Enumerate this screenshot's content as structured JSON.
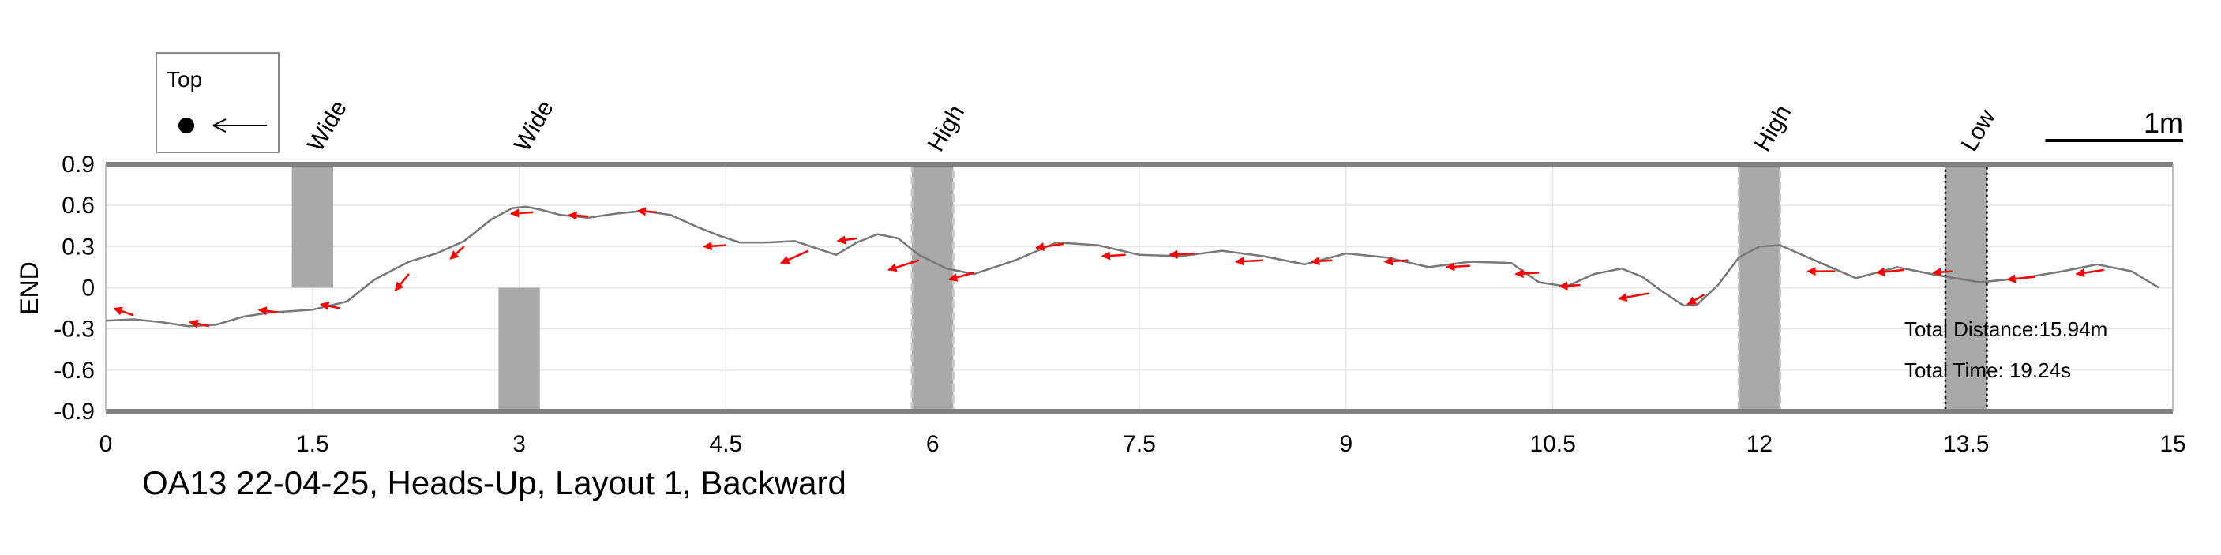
{
  "chart_data": {
    "type": "line",
    "title": "OA13 22-04-25, Heads-Up, Layout 1, Backward",
    "xlabel": "",
    "ylabel": "END",
    "xlim": [
      0,
      15
    ],
    "ylim": [
      -0.9,
      0.9
    ],
    "xticks": [
      "0",
      "1.5",
      "3",
      "4.5",
      "6",
      "7.5",
      "9",
      "10.5",
      "12",
      "13.5",
      "15"
    ],
    "yticks": [
      "0.9",
      "0.6",
      "0.3",
      "0",
      "-0.3",
      "-0.6",
      "-0.9"
    ],
    "grid": true,
    "colors": {
      "path": "#777777",
      "arrow": "#ff0000",
      "obstacle": "#a9a9a9",
      "axis": "#808080"
    },
    "legend": {
      "title": "Top",
      "position": "top-left",
      "marker": "dot-with-left-arrow"
    },
    "scale_bar": {
      "label": "1m",
      "length": 1.0
    },
    "annotations": {
      "total_distance": "Total Distance:15.94m",
      "total_time": "Total Time: 19.24s"
    },
    "obstacles": [
      {
        "label": "Wide",
        "x": [
          1.35,
          1.65
        ],
        "y": [
          0.0,
          0.9
        ],
        "style": "solid"
      },
      {
        "label": "Wide",
        "x": [
          2.85,
          3.15
        ],
        "y": [
          -0.9,
          0.0
        ],
        "style": "solid"
      },
      {
        "label": "High",
        "x": [
          5.85,
          6.15
        ],
        "y": [
          -0.9,
          0.9
        ],
        "style": "dashed"
      },
      {
        "label": "High",
        "x": [
          11.85,
          12.15
        ],
        "y": [
          -0.9,
          0.9
        ],
        "style": "dashed"
      },
      {
        "label": "Low",
        "x": [
          13.35,
          13.65
        ],
        "y": [
          -0.9,
          0.9
        ],
        "style": "dotted"
      }
    ],
    "path": {
      "x": [
        0.0,
        0.2,
        0.4,
        0.6,
        0.8,
        1.0,
        1.2,
        1.5,
        1.75,
        1.95,
        2.2,
        2.4,
        2.6,
        2.8,
        2.95,
        3.05,
        3.15,
        3.3,
        3.5,
        3.7,
        3.9,
        4.1,
        4.3,
        4.45,
        4.6,
        4.8,
        5.0,
        5.15,
        5.3,
        5.45,
        5.6,
        5.75,
        5.9,
        6.1,
        6.3,
        6.6,
        6.9,
        7.2,
        7.5,
        7.8,
        8.1,
        8.4,
        8.7,
        9.0,
        9.3,
        9.6,
        9.9,
        10.2,
        10.4,
        10.6,
        10.8,
        11.0,
        11.15,
        11.3,
        11.45,
        11.55,
        11.7,
        11.85,
        12.0,
        12.15,
        12.4,
        12.7,
        13.0,
        13.3,
        13.6,
        13.9,
        14.2,
        14.45,
        14.7,
        14.9
      ],
      "y": [
        -0.24,
        -0.23,
        -0.25,
        -0.28,
        -0.27,
        -0.21,
        -0.18,
        -0.16,
        -0.1,
        0.06,
        0.19,
        0.25,
        0.34,
        0.5,
        0.58,
        0.59,
        0.57,
        0.53,
        0.51,
        0.54,
        0.56,
        0.53,
        0.44,
        0.38,
        0.33,
        0.33,
        0.34,
        0.29,
        0.24,
        0.33,
        0.39,
        0.36,
        0.24,
        0.14,
        0.1,
        0.2,
        0.33,
        0.31,
        0.24,
        0.23,
        0.27,
        0.23,
        0.17,
        0.25,
        0.22,
        0.15,
        0.19,
        0.18,
        0.04,
        0.01,
        0.1,
        0.14,
        0.08,
        -0.03,
        -0.13,
        -0.12,
        0.02,
        0.22,
        0.3,
        0.31,
        0.2,
        0.07,
        0.15,
        0.09,
        0.04,
        0.07,
        0.12,
        0.17,
        0.12,
        0.0
      ]
    },
    "arrows": [
      {
        "x": 0.2,
        "y": -0.2,
        "dx": -0.14,
        "dy": 0.05
      },
      {
        "x": 0.75,
        "y": -0.28,
        "dx": -0.14,
        "dy": 0.03
      },
      {
        "x": 1.25,
        "y": -0.18,
        "dx": -0.14,
        "dy": 0.02
      },
      {
        "x": 1.7,
        "y": -0.15,
        "dx": -0.14,
        "dy": 0.03
      },
      {
        "x": 2.2,
        "y": 0.1,
        "dx": -0.1,
        "dy": -0.12
      },
      {
        "x": 2.6,
        "y": 0.3,
        "dx": -0.1,
        "dy": -0.09
      },
      {
        "x": 3.1,
        "y": 0.55,
        "dx": -0.16,
        "dy": -0.01
      },
      {
        "x": 3.5,
        "y": 0.52,
        "dx": -0.14,
        "dy": 0.01
      },
      {
        "x": 4.0,
        "y": 0.55,
        "dx": -0.14,
        "dy": 0.01
      },
      {
        "x": 4.5,
        "y": 0.31,
        "dx": -0.16,
        "dy": -0.01
      },
      {
        "x": 5.1,
        "y": 0.27,
        "dx": -0.2,
        "dy": -0.09
      },
      {
        "x": 5.45,
        "y": 0.36,
        "dx": -0.14,
        "dy": -0.02
      },
      {
        "x": 5.9,
        "y": 0.2,
        "dx": -0.22,
        "dy": -0.07
      },
      {
        "x": 6.3,
        "y": 0.11,
        "dx": -0.18,
        "dy": -0.05
      },
      {
        "x": 6.95,
        "y": 0.32,
        "dx": -0.2,
        "dy": -0.03
      },
      {
        "x": 7.4,
        "y": 0.24,
        "dx": -0.17,
        "dy": -0.01
      },
      {
        "x": 7.9,
        "y": 0.25,
        "dx": -0.18,
        "dy": -0.01
      },
      {
        "x": 8.4,
        "y": 0.2,
        "dx": -0.2,
        "dy": -0.01
      },
      {
        "x": 8.9,
        "y": 0.2,
        "dx": -0.15,
        "dy": -0.01
      },
      {
        "x": 9.45,
        "y": 0.2,
        "dx": -0.17,
        "dy": -0.01
      },
      {
        "x": 9.9,
        "y": 0.16,
        "dx": -0.17,
        "dy": -0.01
      },
      {
        "x": 10.4,
        "y": 0.11,
        "dx": -0.17,
        "dy": -0.01
      },
      {
        "x": 10.7,
        "y": 0.02,
        "dx": -0.15,
        "dy": -0.01
      },
      {
        "x": 11.2,
        "y": -0.04,
        "dx": -0.22,
        "dy": -0.04
      },
      {
        "x": 11.6,
        "y": -0.05,
        "dx": -0.12,
        "dy": -0.07
      },
      {
        "x": 12.55,
        "y": 0.12,
        "dx": -0.2,
        "dy": 0.0
      },
      {
        "x": 13.05,
        "y": 0.13,
        "dx": -0.2,
        "dy": -0.02
      },
      {
        "x": 13.4,
        "y": 0.12,
        "dx": -0.14,
        "dy": -0.01
      },
      {
        "x": 14.0,
        "y": 0.08,
        "dx": -0.2,
        "dy": -0.02
      },
      {
        "x": 14.5,
        "y": 0.13,
        "dx": -0.2,
        "dy": -0.03
      }
    ]
  }
}
